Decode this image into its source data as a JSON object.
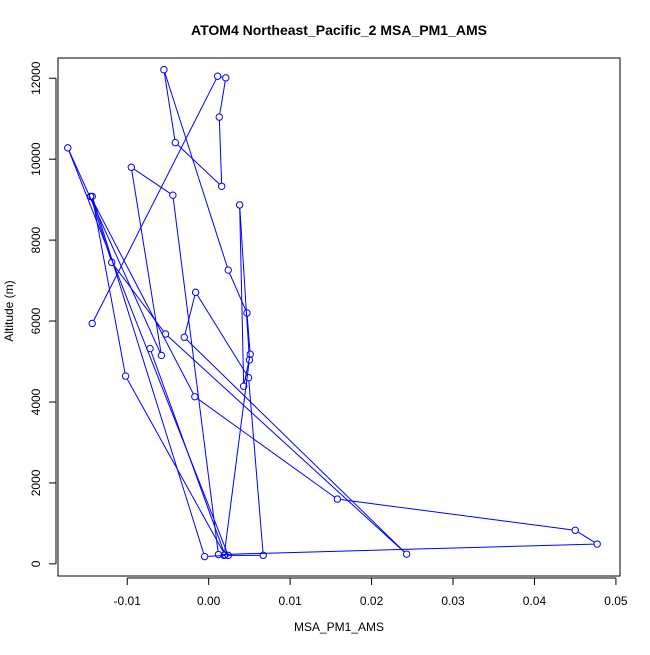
{
  "chart_data": {
    "type": "line",
    "title": "ATOM4 Northeast_Pacific_2 MSA_PM1_AMS",
    "xlabel": "MSA_PM1_AMS",
    "ylabel": "Altitude (m)",
    "xlim": [
      -0.0185,
      0.0505
    ],
    "ylim": [
      -300,
      12500
    ],
    "xticks": [
      -0.01,
      0.0,
      0.01,
      0.02,
      0.03,
      0.04,
      0.05
    ],
    "xtick_labels": [
      "-0.01",
      "0.00",
      "0.01",
      "0.02",
      "0.03",
      "0.04",
      "0.05"
    ],
    "yticks": [
      0,
      2000,
      4000,
      6000,
      8000,
      10000,
      12000
    ],
    "ytick_labels": [
      "0",
      "2000",
      "4000",
      "6000",
      "8000",
      "10000",
      "12000"
    ],
    "markers": "open-circle",
    "grid": false,
    "legend": "none",
    "color": "#0000ff",
    "series": [
      {
        "x": [
          -0.0143,
          0.0011,
          0.0021,
          0.0013,
          0.0016,
          -0.0041,
          -0.0055,
          0.0024,
          0.0047,
          0.0051,
          0.0043,
          0.0038,
          0.005,
          0.0019,
          0.0067,
          0.0049,
          -0.0016,
          -0.003,
          0.0243,
          -0.0053,
          -0.0119,
          -0.0145,
          -0.0017,
          0.0158,
          0.045,
          0.0477,
          0.0012,
          -0.0044,
          -0.0095,
          -0.0058,
          -0.0173,
          0.0024,
          -0.0005,
          -0.0143,
          -0.0102,
          0.002,
          -0.0072
        ],
        "y": [
          5940,
          12050,
          12010,
          11040,
          9330,
          10410,
          12210,
          7260,
          6200,
          5180,
          4390,
          8870,
          5040,
          210,
          210,
          4600,
          6710,
          5600,
          240,
          5680,
          7450,
          9080,
          4130,
          1600,
          830,
          490,
          230,
          9110,
          9800,
          5150,
          10280,
          210,
          180,
          9080,
          4640,
          220,
          5320
        ]
      }
    ]
  }
}
